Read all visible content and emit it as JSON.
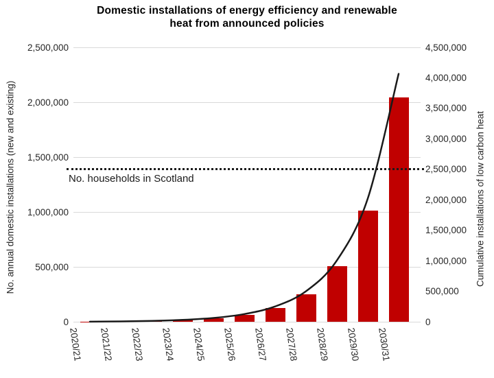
{
  "title": {
    "lines": [
      "Domestic installations of energy efficiency and renewable",
      "heat from announced policies"
    ]
  },
  "chart_data": {
    "type": "bar",
    "subtype": "combo-bar-line-dual-axis",
    "categories": [
      "2020/21",
      "2021/22",
      "2022/23",
      "2023/24",
      "2024/25",
      "2025/26",
      "2026/27",
      "2027/28",
      "2028/29",
      "2029/30",
      "2030/31"
    ],
    "series": [
      {
        "name": "Annual domestic installations",
        "chart": "bar",
        "axis": "left",
        "color": "#C00000",
        "values": [
          2000,
          4000,
          8000,
          16000,
          32000,
          64000,
          125000,
          250000,
          505000,
          1015000,
          2045000
        ]
      },
      {
        "name": "Cumulative installations of low carbon heat",
        "chart": "line",
        "axis": "right",
        "color": "#1a1a1a",
        "values": [
          2000,
          6000,
          14000,
          30000,
          62000,
          126000,
          251000,
          501000,
          1006000,
          2021000,
          4066000
        ]
      }
    ],
    "left_axis": {
      "label": "No. annual domestic installations (new and existing)",
      "min": 0,
      "max": 2500000,
      "step": 500000,
      "ticks": [
        0,
        500000,
        1000000,
        1500000,
        2000000,
        2500000
      ]
    },
    "right_axis": {
      "label": "Cumulative installations of low carbon heat",
      "min": 0,
      "max": 4500000,
      "step": 500000,
      "ticks": [
        0,
        500000,
        1000000,
        1500000,
        2000000,
        2500000,
        3000000,
        3500000,
        4000000,
        4500000
      ]
    },
    "reference_line": {
      "label": "No. households in Scotland",
      "axis": "right",
      "value": 2500000,
      "style": "dotted"
    },
    "grid": true,
    "legend": false,
    "colors": {
      "bar": "#C00000",
      "line": "#1a1a1a",
      "grid": "#d9d9d9",
      "text": "#262626",
      "title": "#000000",
      "reference": "#1a1a1a"
    }
  }
}
